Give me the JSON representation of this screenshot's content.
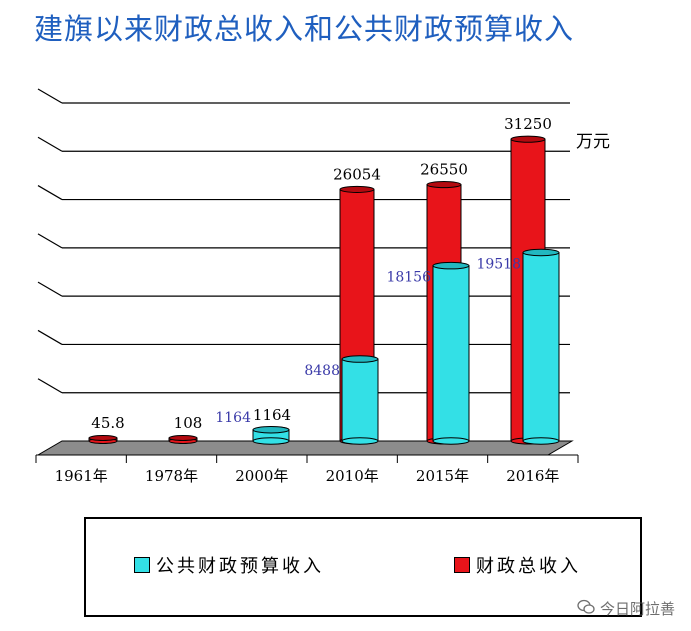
{
  "title": "建旗以来财政总收入和公共财政预算收入",
  "unit": "万元",
  "legend": [
    {
      "label": "公共财政预算收入",
      "color": "#33e0e6"
    },
    {
      "label": "财政总收入",
      "color": "#e8141a"
    }
  ],
  "watermark": "今日阿拉善",
  "chart_data": {
    "type": "bar",
    "categories": [
      "1961年",
      "1978年",
      "2000年",
      "2010年",
      "2015年",
      "2016年"
    ],
    "series": [
      {
        "name": "财政总收入",
        "values": [
          45.8,
          108,
          1164,
          26054,
          26550,
          31250
        ],
        "labels": [
          "45.8",
          "108",
          "1164",
          "26054",
          "26550",
          "31250"
        ],
        "color": "#e8141a"
      },
      {
        "name": "公共财政预算收入",
        "values": [
          null,
          null,
          1164,
          8488,
          18156,
          19518
        ],
        "labels": [
          "",
          "",
          "1164",
          "8488",
          "18156",
          "19518"
        ],
        "color": "#33e0e6"
      }
    ],
    "ylim": [
      0,
      35000
    ],
    "grid": true,
    "legend_position": "bottom"
  }
}
